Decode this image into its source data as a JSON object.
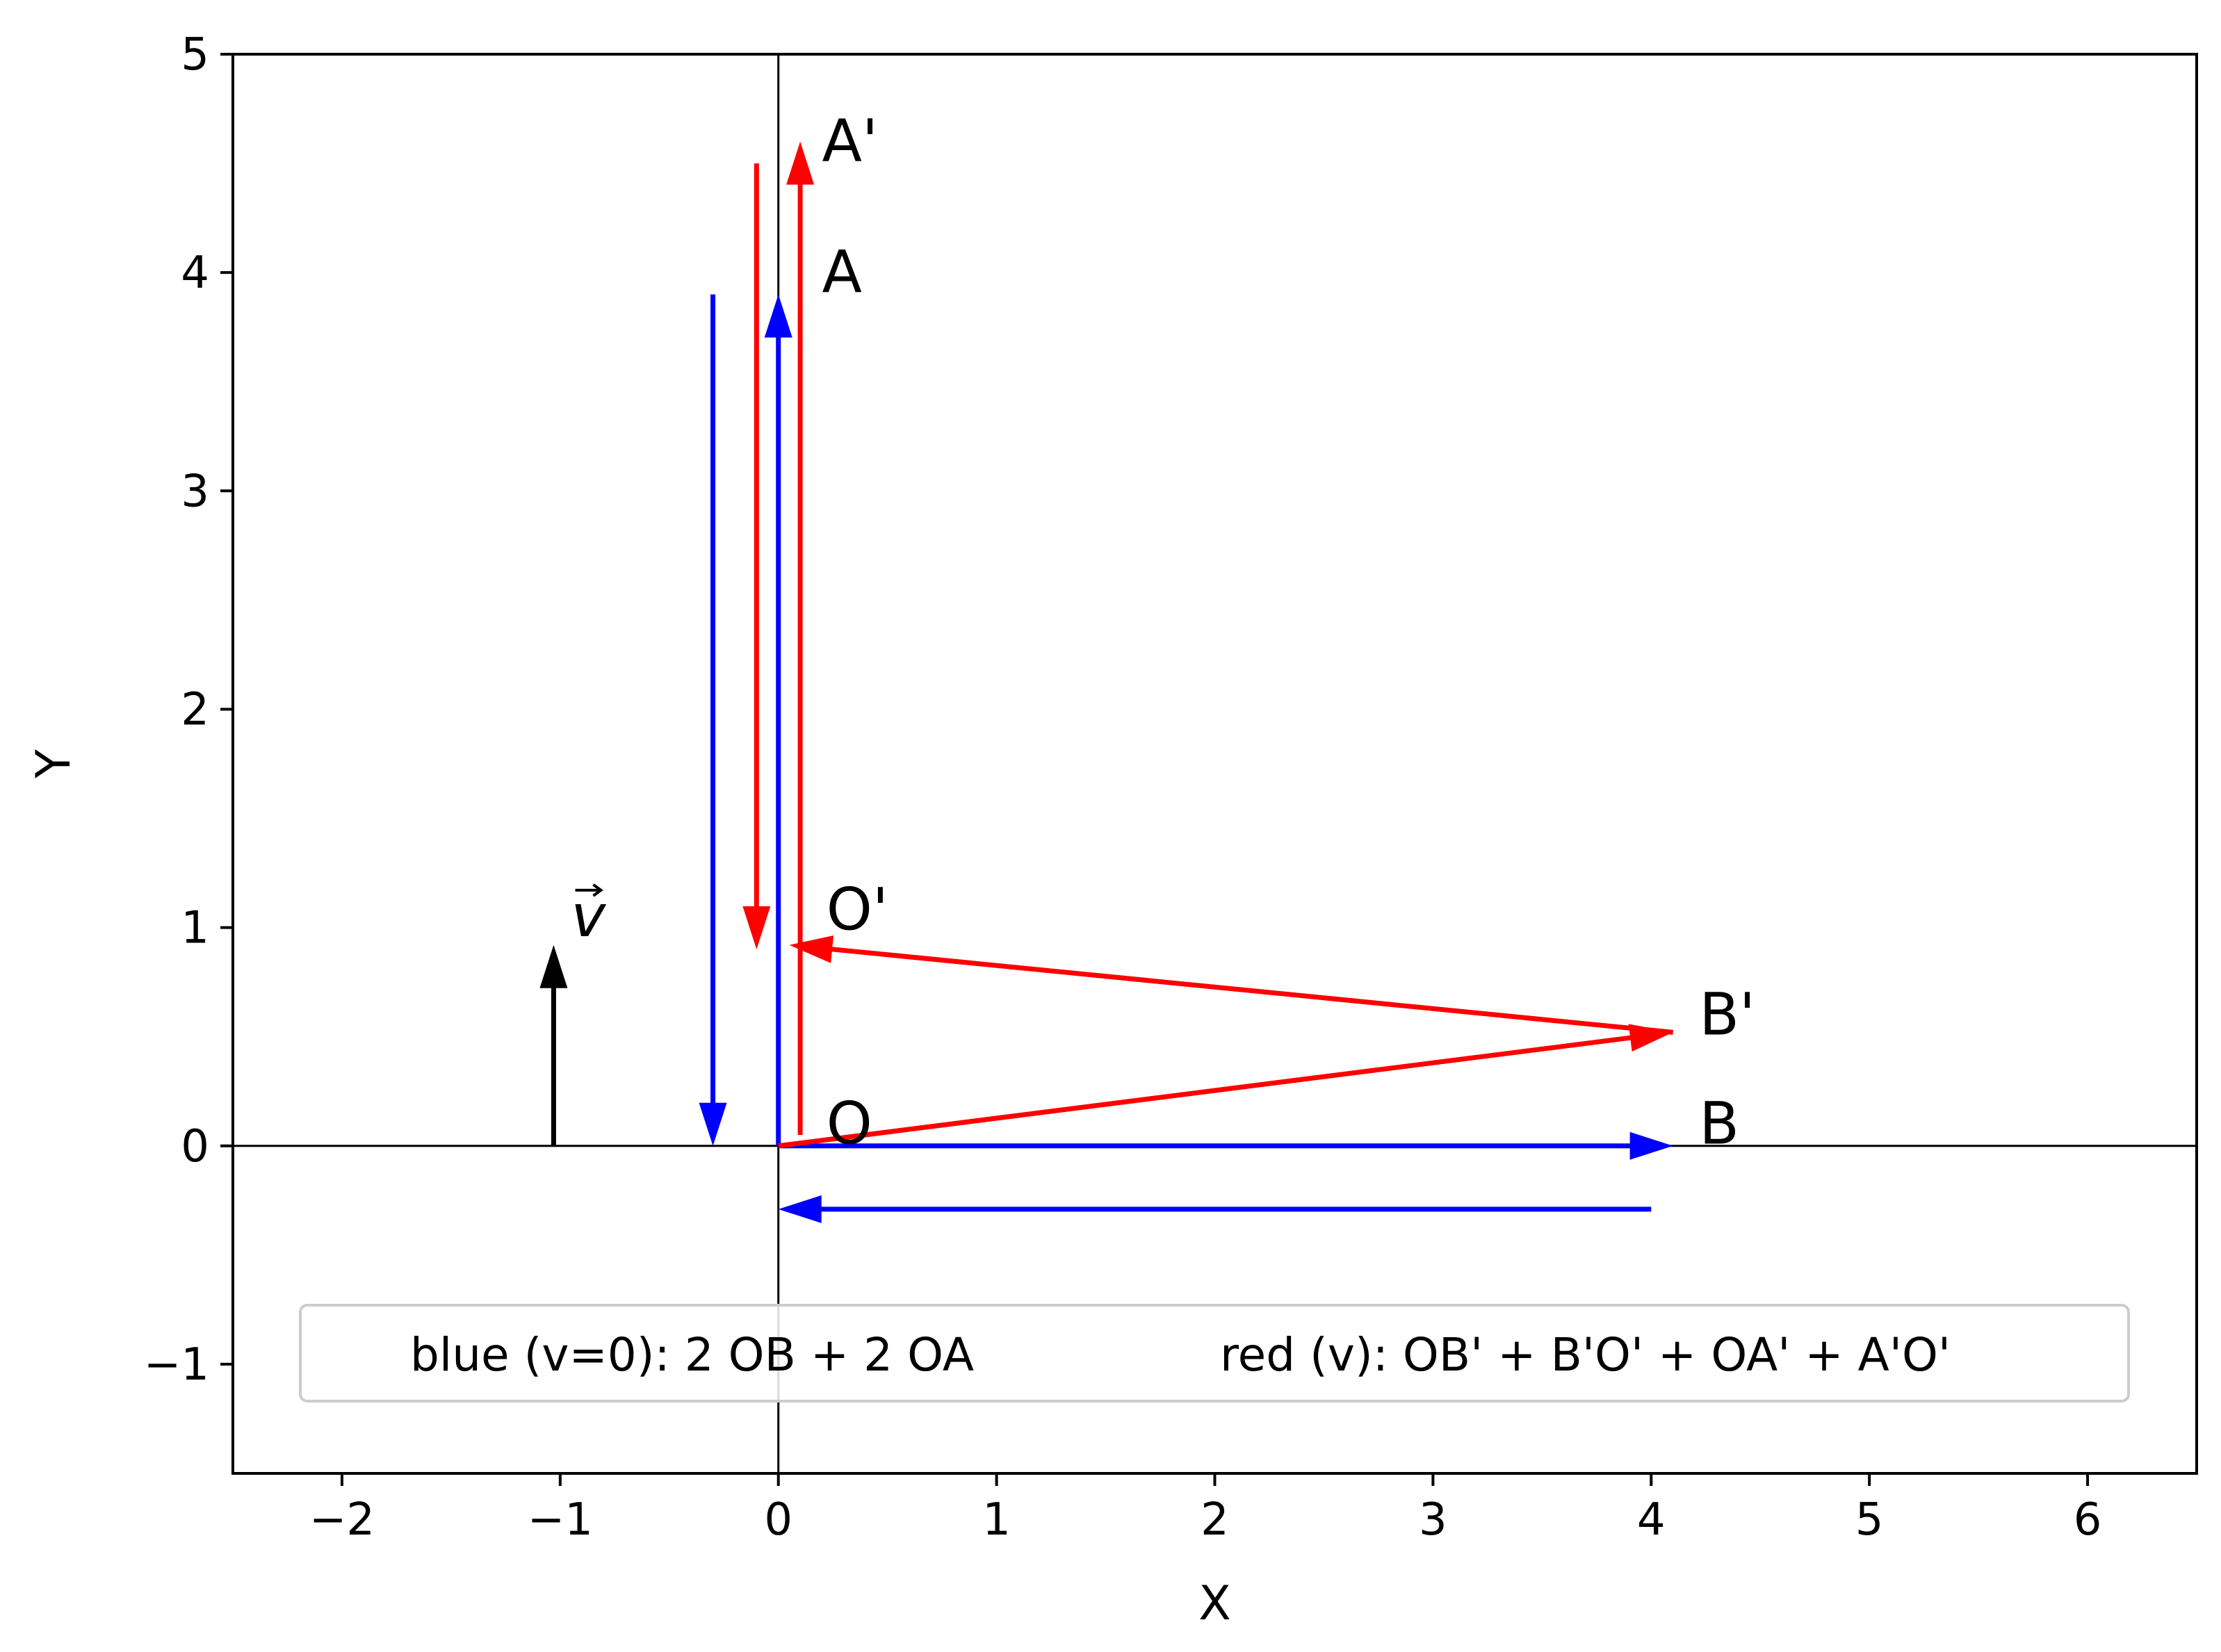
{
  "chart_data": {
    "type": "quiver",
    "title": "",
    "xlabel": "X",
    "ylabel": "Y",
    "xlim": [
      -2.5,
      6.5
    ],
    "ylim": [
      -1.5,
      5
    ],
    "xticks": [
      -2,
      -1,
      0,
      1,
      2,
      3,
      4,
      5,
      6
    ],
    "xtick_labels": [
      "−2",
      "−1",
      "0",
      "1",
      "2",
      "3",
      "4",
      "5",
      "6"
    ],
    "yticks": [
      -1,
      0,
      1,
      2,
      3,
      4,
      5
    ],
    "ytick_labels": [
      "−1",
      "0",
      "1",
      "2",
      "3",
      "4",
      "5"
    ],
    "grid": false,
    "reference_lines": [
      {
        "axis": "x",
        "value": 0
      },
      {
        "axis": "y",
        "value": 0
      }
    ],
    "colors": {
      "blue": "#0000ff",
      "red": "#ff0000",
      "black": "#000000"
    },
    "series": [
      {
        "color": "blue",
        "arrows": [
          {
            "x0": 0,
            "y0": 0,
            "x1": 4.1,
            "y1": 0
          },
          {
            "x0": 4.0,
            "y0": -0.29,
            "x1": 0,
            "y1": -0.29
          },
          {
            "x0": 0,
            "y0": 0,
            "x1": 0,
            "y1": 3.9
          },
          {
            "x0": -0.3,
            "y0": 3.9,
            "x1": -0.3,
            "y1": 0
          }
        ]
      },
      {
        "color": "red",
        "arrows": [
          {
            "x0": 0,
            "y0": 0,
            "x1": 4.1,
            "y1": 0.52
          },
          {
            "x0": 4.1,
            "y0": 0.52,
            "x1": 0.05,
            "y1": 0.92
          },
          {
            "x0": 0.1,
            "y0": 0.05,
            "x1": 0.1,
            "y1": 4.6
          },
          {
            "x0": -0.1,
            "y0": 4.5,
            "x1": -0.1,
            "y1": 0.9
          }
        ]
      },
      {
        "color": "black",
        "arrows": [
          {
            "x0": -1.03,
            "y0": 0,
            "x1": -1.03,
            "y1": 0.92
          }
        ]
      }
    ],
    "annotations": [
      {
        "text": "A'",
        "x": 0.2,
        "y": 4.6
      },
      {
        "text": "A",
        "x": 0.2,
        "y": 4.0
      },
      {
        "text": "O'",
        "x": 0.22,
        "y": 1.08
      },
      {
        "text": "B'",
        "x": 4.22,
        "y": 0.6
      },
      {
        "text": "O",
        "x": 0.22,
        "y": 0.1
      },
      {
        "text": "B",
        "x": 4.22,
        "y": 0.1
      },
      {
        "text": "v",
        "x": -0.95,
        "y": 1.05
      }
    ],
    "legend": {
      "position": "lower-center",
      "entries": [
        "blue (v=0): 2 OB + 2 OA",
        "red (v): OB' + B'O' + OA' + A'O'"
      ]
    }
  }
}
